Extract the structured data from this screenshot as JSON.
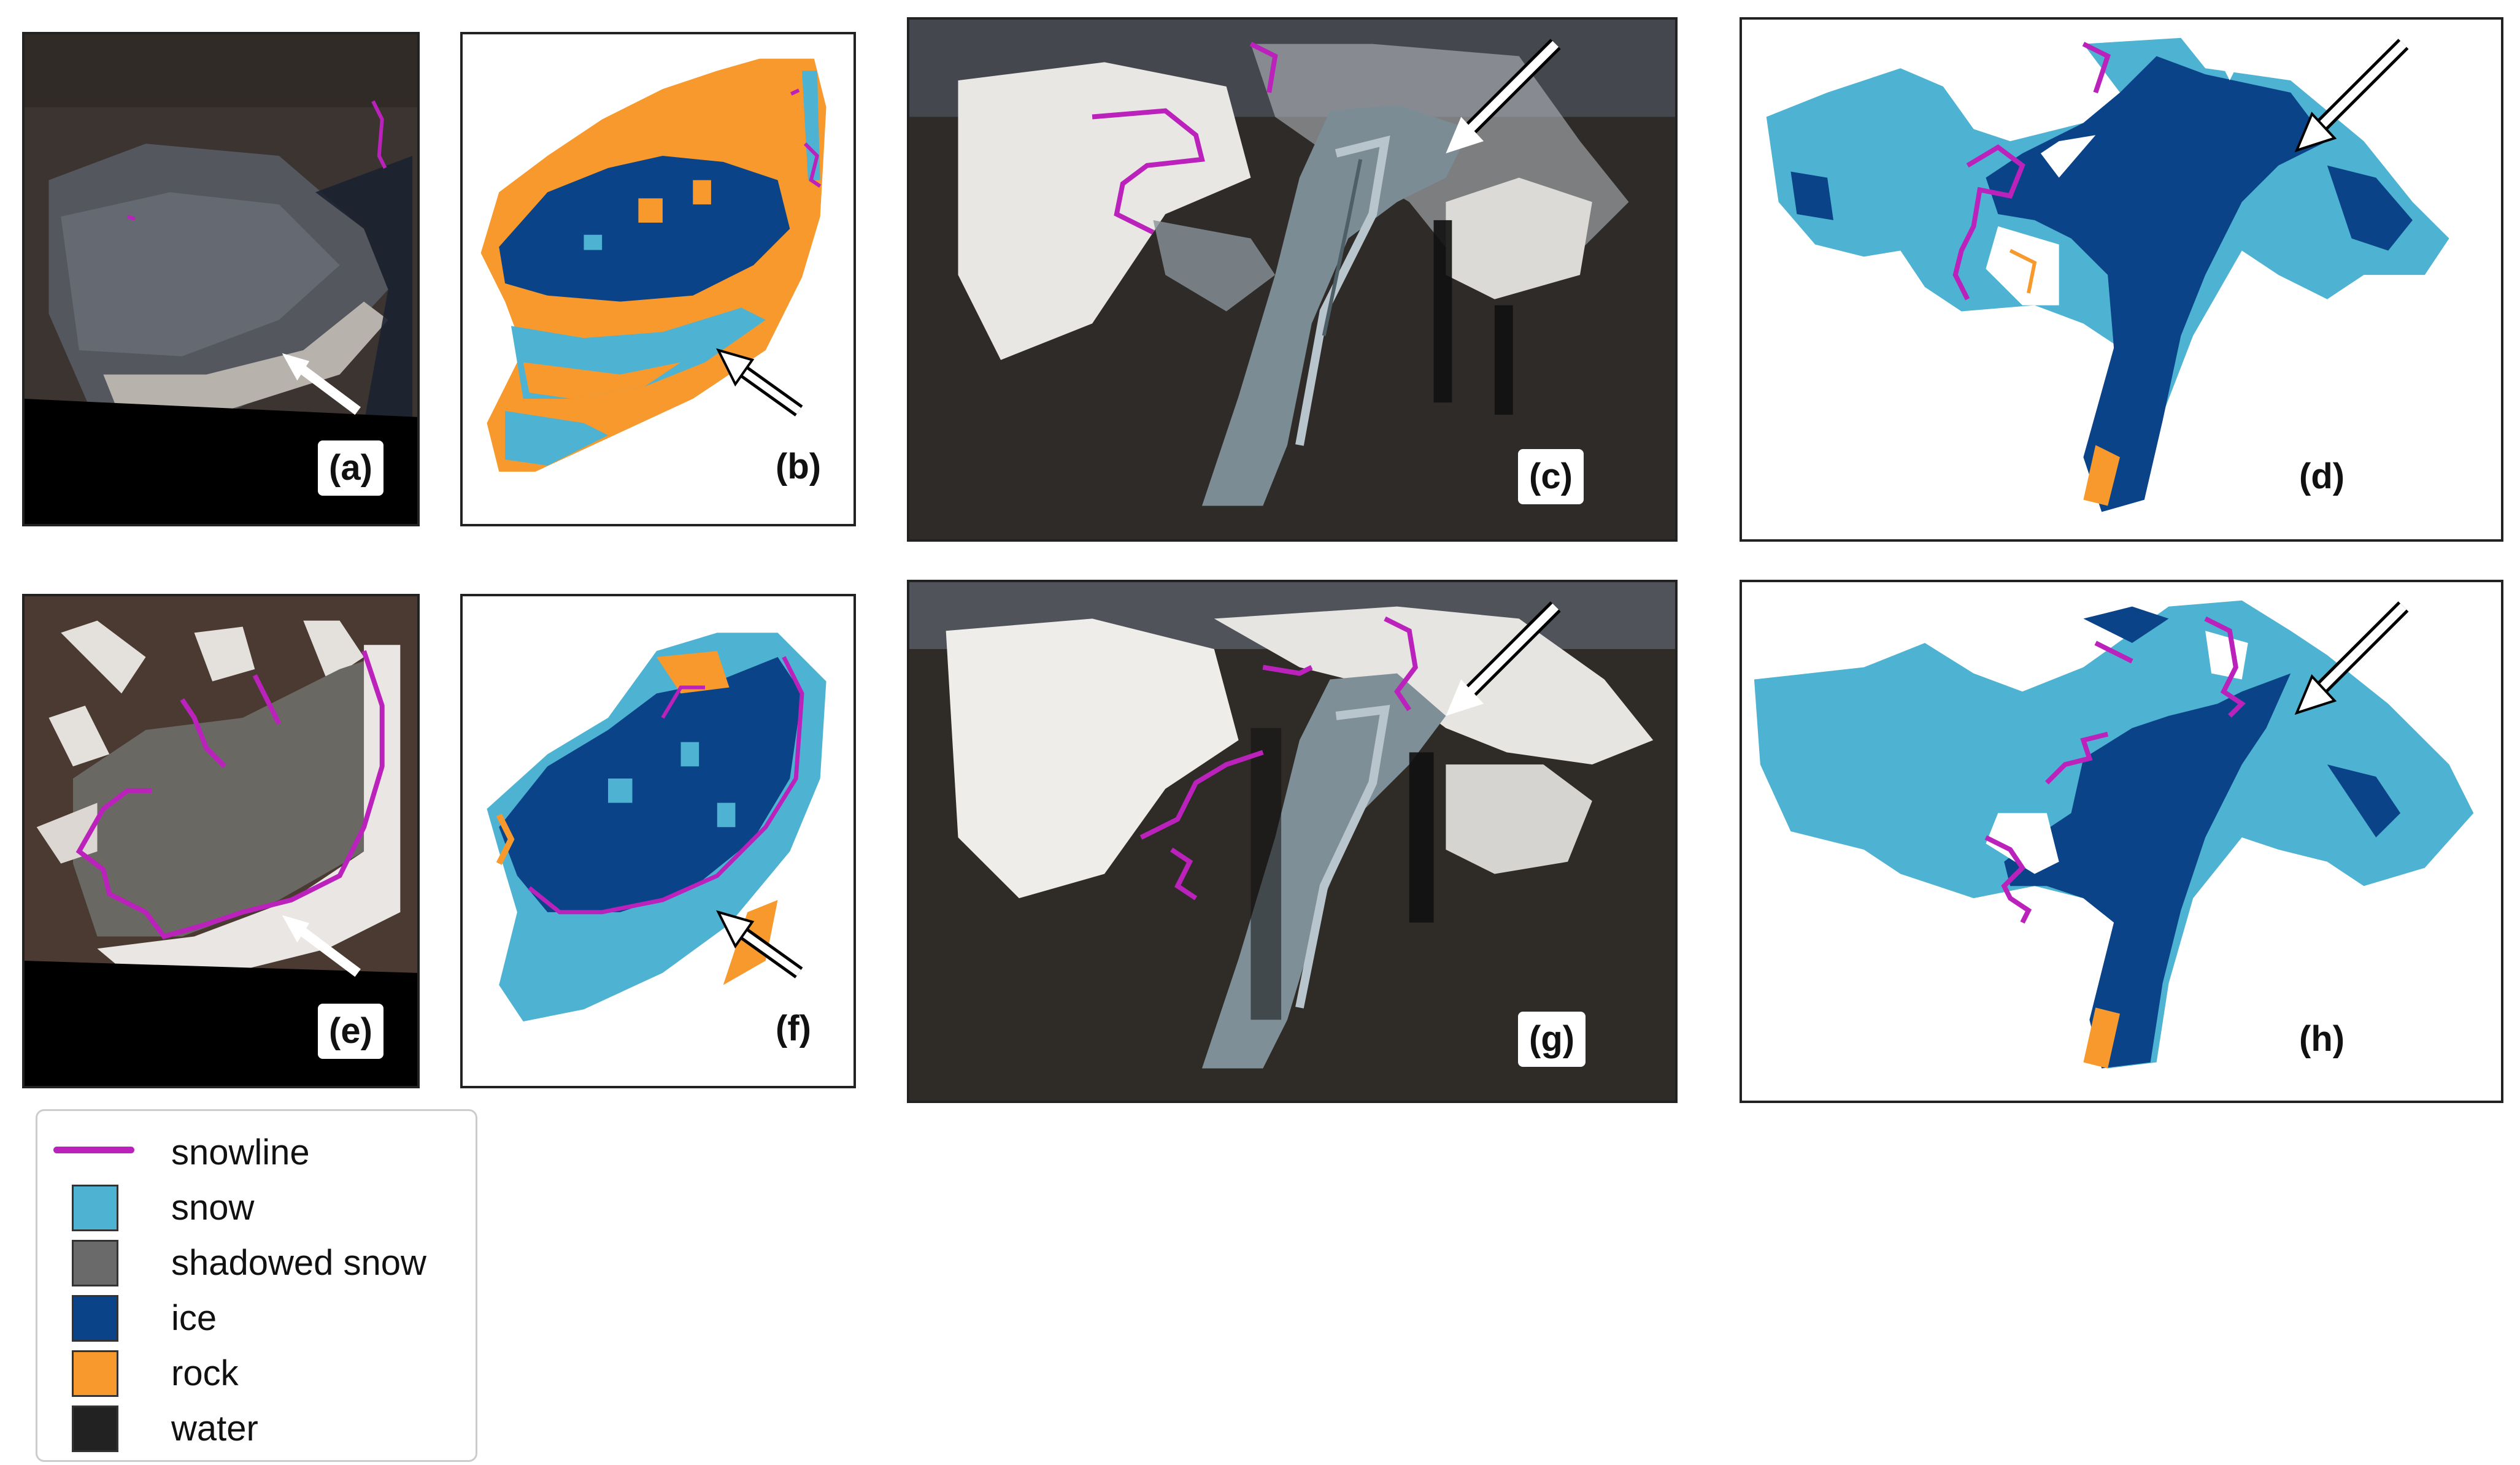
{
  "panels": {
    "a": {
      "label": "(a)"
    },
    "b": {
      "label": "(b)"
    },
    "c": {
      "label": "(c)"
    },
    "d": {
      "label": "(d)"
    },
    "e": {
      "label": "(e)"
    },
    "f": {
      "label": "(f)"
    },
    "g": {
      "label": "(g)"
    },
    "h": {
      "label": "(h)"
    }
  },
  "legend": {
    "snowline": "snowline",
    "snow": "snow",
    "shadowed_snow": "shadowed snow",
    "ice": "ice",
    "rock": "rock",
    "water": "water"
  },
  "colors": {
    "snowline": "#bb22bb",
    "snow": "#4eb3d3",
    "shadowed_snow": "#6a6a6a",
    "ice": "#0a4388",
    "rock": "#f7992c",
    "water": "#222222"
  }
}
